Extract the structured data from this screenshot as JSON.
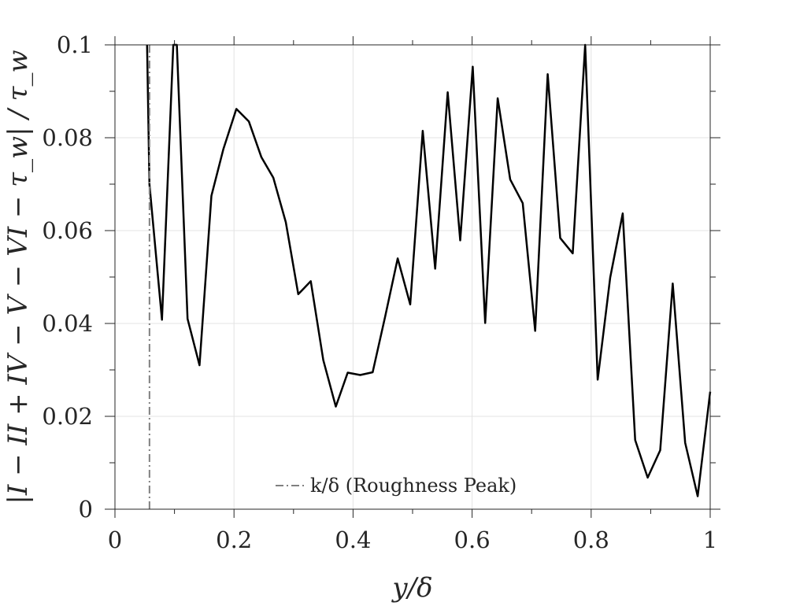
{
  "chart_data": {
    "type": "line",
    "title": "",
    "xlabel": "y/δ",
    "ylabel": "|I − II + IV − V − VI − τ_w| / τ_w",
    "xlim": [
      0,
      1
    ],
    "ylim": [
      0,
      0.1
    ],
    "xticks": [
      0,
      0.2,
      0.4,
      0.6,
      0.8,
      1
    ],
    "xtick_labels": [
      "0",
      "0.2",
      "0.4",
      "0.6",
      "0.8",
      "1"
    ],
    "yticks": [
      0,
      0.02,
      0.04,
      0.06,
      0.08,
      0.1
    ],
    "ytick_labels": [
      "0",
      "0.02",
      "0.04",
      "0.06",
      "0.08",
      "0.1"
    ],
    "grid": true,
    "box": true,
    "legend_position": "bottom-center",
    "series": [
      {
        "color": "#000000",
        "style": "solid",
        "x": [
          0.054,
          0.058,
          0.079,
          0.098,
          0.104,
          0.122,
          0.142,
          0.162,
          0.182,
          0.204,
          0.225,
          0.246,
          0.266,
          0.287,
          0.308,
          0.329,
          0.35,
          0.371,
          0.391,
          0.412,
          0.433,
          0.454,
          0.475,
          0.496,
          0.517,
          0.538,
          0.559,
          0.58,
          0.601,
          0.622,
          0.643,
          0.664,
          0.685,
          0.706,
          0.727,
          0.748,
          0.769,
          0.79,
          0.811,
          0.832,
          0.853,
          0.874,
          0.895,
          0.916,
          0.937,
          0.958,
          0.979,
          1.0
        ],
        "y": [
          0.1,
          0.07,
          0.0408,
          0.1,
          0.1,
          0.041,
          0.031,
          0.0675,
          0.0775,
          0.0862,
          0.0835,
          0.0758,
          0.0714,
          0.0618,
          0.0463,
          0.0491,
          0.0321,
          0.0221,
          0.0294,
          0.0289,
          0.0295,
          0.0415,
          0.054,
          0.0441,
          0.0815,
          0.0518,
          0.0898,
          0.0579,
          0.0953,
          0.0401,
          0.0885,
          0.071,
          0.0659,
          0.0384,
          0.0937,
          0.0584,
          0.0551,
          0.1,
          0.0279,
          0.0499,
          0.0637,
          0.0149,
          0.0068,
          0.0127,
          0.0486,
          0.0143,
          0.0028,
          0.0253
        ]
      },
      {
        "name": "k/δ (Roughness Peak)",
        "color": "#808080",
        "style": "dash-dot",
        "x": [
          0.058,
          0.058
        ],
        "y": [
          0,
          0.1
        ]
      }
    ]
  }
}
